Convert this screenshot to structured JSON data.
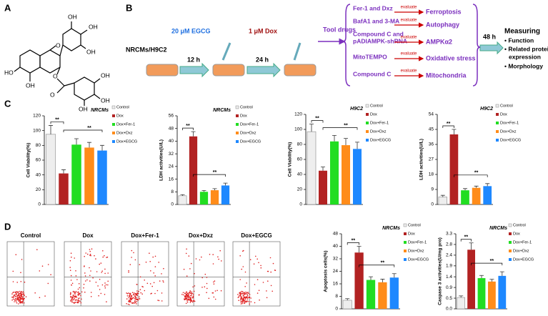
{
  "panels": [
    "A",
    "B",
    "C",
    "D"
  ],
  "structure": {
    "labels": [
      "OH",
      "OH",
      "OH",
      "HO",
      "O",
      "OH",
      "O",
      "O",
      "OH",
      "OH",
      "OH"
    ]
  },
  "workflow": {
    "cells": "NRCMs/H9C2",
    "egcg": "20 μM EGCG",
    "t1": "12 h",
    "dox": "1 μM Dox",
    "t2": "24 h",
    "tool": "Tool drugs",
    "drugs": [
      "Fer-1 and Dxz",
      "BafA1 and 3-MA",
      "Compound C and",
      "pADIAMPK-shRNA",
      "MitoTEMPO",
      "Compound C"
    ],
    "evaluate": [
      "evaluate",
      "evaluate",
      "evaluate",
      "evaluate",
      "evaluate"
    ],
    "outcomes": [
      "Ferroptosis",
      "Autophagy",
      "AMPKα2",
      "Oxidative stress",
      "Mitochondria"
    ],
    "t3": "48 h",
    "measure": [
      "Measuring",
      "• Function",
      "• Related protein",
      "expression",
      "• Morphology"
    ]
  },
  "flow": {
    "titles": [
      "Control",
      "Dox",
      "Dox+Fer-1",
      "Dox+Dxz",
      "Dox+EGCG"
    ]
  },
  "chart_data": [
    {
      "type": "bar",
      "ylabel": "Cell Viability(%)",
      "annotation": "NRCMs",
      "categories": [
        "Control",
        "Dox",
        "Dox+Fer-1",
        "Dox+Dxz",
        "Dox+EGCG"
      ],
      "colors": [
        "#eeeeee",
        "#b22222",
        "#22dd22",
        "#ff8c1a",
        "#1e88ff"
      ],
      "values": [
        95,
        42,
        81,
        77,
        73
      ],
      "errors": [
        12,
        5,
        8,
        7,
        7
      ],
      "ylim": [
        0,
        120
      ],
      "yticks": [
        0,
        20,
        40,
        60,
        80,
        100,
        120
      ],
      "significance": [
        "**",
        "**"
      ]
    },
    {
      "type": "bar",
      "ylabel": "LDH activities(U/L)",
      "annotation": "NRCMs",
      "categories": [
        "Control",
        "Dox",
        "Dox+Fer-1",
        "Dox+Dxz",
        "Dox+EGCG"
      ],
      "colors": [
        "#eeeeee",
        "#b22222",
        "#22dd22",
        "#ff8c1a",
        "#1e88ff"
      ],
      "values": [
        5.5,
        43,
        8,
        9,
        12
      ],
      "errors": [
        0.7,
        3,
        0.8,
        1,
        1.5
      ],
      "ylim": [
        0,
        56
      ],
      "yticks": [
        0,
        8,
        16,
        24,
        32,
        40,
        48,
        56
      ],
      "significance": [
        "**",
        "**"
      ]
    },
    {
      "type": "bar",
      "ylabel": "Cell Viability(%)",
      "annotation": "H9C2",
      "categories": [
        "Control",
        "Dox",
        "Dox+Fer-1",
        "Dox+Dxz",
        "Dox+EGCG"
      ],
      "colors": [
        "#eeeeee",
        "#b22222",
        "#22dd22",
        "#ff8c1a",
        "#1e88ff"
      ],
      "values": [
        97,
        45,
        84,
        79,
        74
      ],
      "errors": [
        10,
        5,
        8,
        9,
        9
      ],
      "ylim": [
        0,
        120
      ],
      "yticks": [
        0,
        20,
        40,
        60,
        80,
        100,
        120
      ],
      "significance": [
        "**",
        "**"
      ]
    },
    {
      "type": "bar",
      "ylabel": "LDH activities(U/L)",
      "annotation": "H9C2",
      "categories": [
        "Control",
        "Dox",
        "Dox+Fer-1",
        "Dox+Dxz",
        "Dox+EGCG"
      ],
      "colors": [
        "#eeeeee",
        "#b22222",
        "#22dd22",
        "#ff8c1a",
        "#1e88ff"
      ],
      "values": [
        4.5,
        42,
        8.5,
        10,
        11
      ],
      "errors": [
        1,
        3,
        1,
        1,
        1.5
      ],
      "ylim": [
        0,
        54
      ],
      "yticks": [
        0,
        9,
        18,
        27,
        36,
        45,
        54
      ],
      "significance": [
        "**",
        "**"
      ]
    },
    {
      "type": "bar",
      "ylabel": "Apoptosis cells(%)",
      "annotation": "NRCMs",
      "categories": [
        "Control",
        "Dox",
        "Dox+Fer-1",
        "Dox+Dxz",
        "Dox+EGCG"
      ],
      "colors": [
        "#eeeeee",
        "#b22222",
        "#22dd22",
        "#ff8c1a",
        "#1e88ff"
      ],
      "values": [
        5.5,
        36,
        18.5,
        17,
        20
      ],
      "errors": [
        1,
        4,
        2,
        2,
        2.5
      ],
      "ylim": [
        0,
        48
      ],
      "yticks": [
        0,
        8,
        16,
        24,
        32,
        40,
        48
      ],
      "significance": [
        "**",
        "**"
      ]
    },
    {
      "type": "bar",
      "ylabel": "Caspase 3 activities(U/mg pro)",
      "annotation": "NRCMs",
      "categories": [
        "Control",
        "Dox",
        "Dox+Fer-1",
        "Dox+Dxz",
        "Dox+EGCG"
      ],
      "colors": [
        "#eeeeee",
        "#b22222",
        "#22dd22",
        "#ff8c1a",
        "#1e88ff"
      ],
      "values": [
        0.5,
        2.6,
        1.35,
        1.2,
        1.45
      ],
      "errors": [
        0.07,
        0.3,
        0.12,
        0.1,
        0.18
      ],
      "ylim": [
        0,
        3.3
      ],
      "yticks": [
        {
          "value": 0,
          "label": "0.0"
        },
        {
          "value": 0.47,
          "label": "0.5"
        },
        {
          "value": 0.94,
          "label": "0.9"
        },
        {
          "value": 1.41,
          "label": "1.4"
        },
        {
          "value": 1.89,
          "label": "1.9"
        },
        {
          "value": 2.36,
          "label": "2.4"
        },
        {
          "value": 2.83,
          "label": "2.8"
        },
        {
          "value": 3.3,
          "label": "3.3"
        }
      ],
      "significance": [
        "**",
        "**"
      ]
    }
  ]
}
